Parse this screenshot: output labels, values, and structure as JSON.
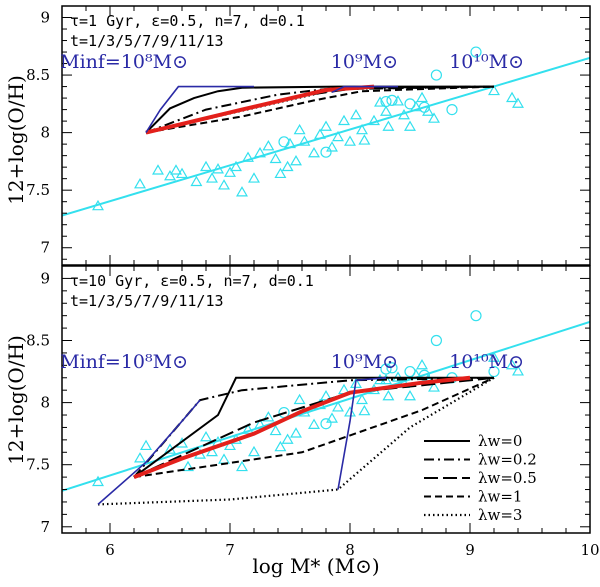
{
  "chart_data": {
    "type": "line",
    "xlabel": "log M* (M⊙)",
    "ylabel": "12+log(O/H)",
    "xlim": [
      5.6,
      10
    ],
    "x_ticks": [
      6,
      7,
      8,
      9,
      10
    ],
    "shared_x": true,
    "colors": {
      "model": "#000000",
      "fit": "#33e0ee",
      "obs": "#33e0ee",
      "highlight": "#e3201b",
      "envelope": "#2a2aa6"
    },
    "legend": {
      "position": "bottom-right",
      "entries": [
        {
          "label": "λw=0",
          "style": "solid"
        },
        {
          "label": "λw=0.2",
          "style": "dashdot"
        },
        {
          "label": "λw=0.5",
          "style": "longdash"
        },
        {
          "label": "λw=1",
          "style": "dash"
        },
        {
          "label": "λw=3",
          "style": "dot"
        }
      ]
    },
    "panels": [
      {
        "ylim": [
          6.85,
          9.1
        ],
        "y_ticks": [
          7,
          7.5,
          8,
          8.5,
          9
        ],
        "params_line1": "τ=1 Gyr, ε=0.5, n=7, d=0.1",
        "params_line2": "t=1/3/5/7/9/11/13",
        "mass_labels": [
          {
            "text": "Minf=10⁸M⊙",
            "x": 6.65,
            "y": 8.56
          },
          {
            "text": "10⁹M⊙",
            "x": 8.4,
            "y": 8.56
          },
          {
            "text": "10¹⁰M⊙",
            "x": 9.45,
            "y": 8.56
          }
        ],
        "fit_line": [
          [
            5.6,
            7.28
          ],
          [
            10,
            8.65
          ]
        ],
        "series": [
          {
            "name": "λw=0",
            "style": "solid",
            "points": [
              [
                6.3,
                8.0
              ],
              [
                6.5,
                8.21
              ],
              [
                6.7,
                8.3
              ],
              [
                6.9,
                8.36
              ],
              [
                7.1,
                8.39
              ],
              [
                7.9,
                8.4
              ],
              [
                9.2,
                8.4
              ]
            ]
          },
          {
            "name": "λw=0.2",
            "style": "dashdot",
            "points": [
              [
                6.3,
                8.0
              ],
              [
                6.8,
                8.2
              ],
              [
                7.4,
                8.33
              ],
              [
                7.9,
                8.39
              ],
              [
                9.2,
                8.4
              ]
            ]
          },
          {
            "name": "λw=0.5",
            "style": "longdash",
            "points": [
              [
                6.3,
                8.0
              ],
              [
                7.0,
                8.18
              ],
              [
                7.6,
                8.32
              ],
              [
                8.0,
                8.38
              ],
              [
                9.2,
                8.4
              ]
            ]
          },
          {
            "name": "λw=1",
            "style": "dash",
            "points": [
              [
                6.3,
                8.0
              ],
              [
                7.1,
                8.14
              ],
              [
                7.7,
                8.28
              ],
              [
                8.1,
                8.36
              ],
              [
                9.2,
                8.4
              ]
            ]
          },
          {
            "name": "λw=3",
            "style": "dot",
            "points": [
              [
                6.3,
                8.0
              ],
              [
                7.9,
                8.38
              ],
              [
                9.2,
                8.4
              ]
            ]
          },
          {
            "name": "highlight",
            "style": "red",
            "points": [
              [
                6.3,
                8.0
              ],
              [
                7.1,
                8.2
              ],
              [
                7.8,
                8.37
              ],
              [
                8.2,
                8.4
              ]
            ]
          },
          {
            "name": "envelope",
            "style": "blue",
            "points": [
              [
                6.3,
                8.0
              ],
              [
                6.42,
                8.2
              ],
              [
                6.57,
                8.4
              ],
              [
                7.2,
                8.4
              ]
            ]
          },
          {
            "name": "envelope-2",
            "style": "blue",
            "points": [
              [
                7.85,
                8.35
              ],
              [
                7.95,
                8.4
              ],
              [
                8.4,
                8.4
              ]
            ]
          }
        ],
        "triangles": [
          [
            5.9,
            7.36
          ],
          [
            6.25,
            7.55
          ],
          [
            6.4,
            7.67
          ],
          [
            6.5,
            7.62
          ],
          [
            6.55,
            7.67
          ],
          [
            6.6,
            7.64
          ],
          [
            6.72,
            7.57
          ],
          [
            6.8,
            7.7
          ],
          [
            6.85,
            7.6
          ],
          [
            6.9,
            7.68
          ],
          [
            6.95,
            7.54
          ],
          [
            7.0,
            7.65
          ],
          [
            7.05,
            7.7
          ],
          [
            7.1,
            7.48
          ],
          [
            7.15,
            7.78
          ],
          [
            7.2,
            7.6
          ],
          [
            7.25,
            7.82
          ],
          [
            7.32,
            7.88
          ],
          [
            7.38,
            7.77
          ],
          [
            7.42,
            7.64
          ],
          [
            7.48,
            7.7
          ],
          [
            7.5,
            7.9
          ],
          [
            7.55,
            7.75
          ],
          [
            7.58,
            8.02
          ],
          [
            7.62,
            7.92
          ],
          [
            7.7,
            7.82
          ],
          [
            7.75,
            7.98
          ],
          [
            7.8,
            8.05
          ],
          [
            7.85,
            7.87
          ],
          [
            7.9,
            7.96
          ],
          [
            7.95,
            8.1
          ],
          [
            8.0,
            7.92
          ],
          [
            8.05,
            8.15
          ],
          [
            8.1,
            8.02
          ],
          [
            8.12,
            7.93
          ],
          [
            8.2,
            8.1
          ],
          [
            8.25,
            8.26
          ],
          [
            8.3,
            8.18
          ],
          [
            8.32,
            8.05
          ],
          [
            8.4,
            8.27
          ],
          [
            8.45,
            8.15
          ],
          [
            8.5,
            8.05
          ],
          [
            8.55,
            8.22
          ],
          [
            8.6,
            8.3
          ],
          [
            8.65,
            8.18
          ],
          [
            8.7,
            8.12
          ],
          [
            9.2,
            8.36
          ],
          [
            9.35,
            8.3
          ],
          [
            9.4,
            8.25
          ]
        ],
        "circles": [
          [
            7.45,
            7.92
          ],
          [
            7.8,
            7.83
          ],
          [
            8.3,
            8.27
          ],
          [
            8.35,
            8.28
          ],
          [
            8.5,
            8.25
          ],
          [
            8.62,
            8.22
          ],
          [
            8.72,
            8.5
          ],
          [
            8.85,
            8.2
          ],
          [
            9.05,
            8.7
          ]
        ]
      },
      {
        "ylim": [
          6.95,
          9.1
        ],
        "y_ticks": [
          7,
          7.5,
          8,
          8.5,
          9
        ],
        "params_line1": "τ=10 Gyr, ε=0.5, n=7, d=0.1",
        "params_line2": "t=1/3/5/7/9/11/13",
        "mass_labels": [
          {
            "text": "Minf=10⁸M⊙",
            "x": 6.65,
            "y": 8.28
          },
          {
            "text": "10⁹M⊙",
            "x": 8.4,
            "y": 8.28
          },
          {
            "text": "10¹⁰M⊙",
            "x": 9.45,
            "y": 8.28
          }
        ],
        "fit_line": [
          [
            5.6,
            7.29
          ],
          [
            10,
            8.65
          ]
        ],
        "series": [
          {
            "name": "λw=0",
            "style": "solid",
            "points": [
              [
                6.2,
                7.4
              ],
              [
                6.9,
                7.9
              ],
              [
                7.05,
                8.2
              ],
              [
                9.2,
                8.2
              ]
            ]
          },
          {
            "name": "λw=0.2",
            "style": "dashdot",
            "points": [
              [
                6.2,
                7.4
              ],
              [
                6.75,
                8.02
              ],
              [
                7.1,
                8.1
              ],
              [
                8.0,
                8.18
              ],
              [
                9.2,
                8.2
              ]
            ]
          },
          {
            "name": "λw=0.5",
            "style": "longdash",
            "points": [
              [
                6.2,
                7.4
              ],
              [
                7.2,
                7.84
              ],
              [
                8.0,
                8.08
              ],
              [
                9.2,
                8.2
              ]
            ]
          },
          {
            "name": "λw=1",
            "style": "dash",
            "points": [
              [
                6.2,
                7.4
              ],
              [
                7.6,
                7.6
              ],
              [
                8.6,
                7.94
              ],
              [
                9.2,
                8.2
              ]
            ]
          },
          {
            "name": "λw=3",
            "style": "dot",
            "points": [
              [
                5.9,
                7.18
              ],
              [
                7.0,
                7.22
              ],
              [
                7.9,
                7.3
              ],
              [
                8.5,
                7.8
              ],
              [
                9.2,
                8.2
              ]
            ]
          },
          {
            "name": "highlight",
            "style": "red",
            "points": [
              [
                6.2,
                7.4
              ],
              [
                6.6,
                7.55
              ],
              [
                7.2,
                7.75
              ],
              [
                7.6,
                7.93
              ],
              [
                8.0,
                8.08
              ],
              [
                8.6,
                8.16
              ],
              [
                9.0,
                8.2
              ]
            ]
          },
          {
            "name": "envelope",
            "style": "blue",
            "points": [
              [
                5.9,
                7.18
              ],
              [
                6.3,
                7.52
              ],
              [
                6.6,
                7.85
              ],
              [
                6.75,
                8.02
              ]
            ]
          },
          {
            "name": "envelope-2",
            "style": "blue",
            "points": [
              [
                7.9,
                7.3
              ],
              [
                8.0,
                7.85
              ],
              [
                8.05,
                8.18
              ],
              [
                8.3,
                8.2
              ]
            ]
          }
        ],
        "triangles": [
          [
            5.9,
            7.36
          ],
          [
            6.25,
            7.55
          ],
          [
            6.3,
            7.65
          ],
          [
            6.5,
            7.62
          ],
          [
            6.6,
            7.67
          ],
          [
            6.65,
            7.48
          ],
          [
            6.75,
            7.58
          ],
          [
            6.8,
            7.72
          ],
          [
            6.85,
            7.6
          ],
          [
            6.9,
            7.68
          ],
          [
            6.95,
            7.54
          ],
          [
            7.0,
            7.65
          ],
          [
            7.05,
            7.7
          ],
          [
            7.1,
            7.48
          ],
          [
            7.15,
            7.78
          ],
          [
            7.2,
            7.6
          ],
          [
            7.25,
            7.82
          ],
          [
            7.32,
            7.88
          ],
          [
            7.38,
            7.77
          ],
          [
            7.42,
            7.64
          ],
          [
            7.48,
            7.7
          ],
          [
            7.55,
            7.75
          ],
          [
            7.58,
            8.02
          ],
          [
            7.62,
            7.92
          ],
          [
            7.7,
            7.82
          ],
          [
            7.75,
            7.98
          ],
          [
            7.8,
            8.05
          ],
          [
            7.85,
            7.87
          ],
          [
            7.9,
            7.96
          ],
          [
            7.95,
            8.1
          ],
          [
            8.0,
            7.92
          ],
          [
            8.05,
            8.15
          ],
          [
            8.1,
            8.02
          ],
          [
            8.12,
            7.93
          ],
          [
            8.2,
            8.1
          ],
          [
            8.25,
            8.18
          ],
          [
            8.3,
            8.18
          ],
          [
            8.32,
            8.05
          ],
          [
            8.4,
            8.2
          ],
          [
            8.45,
            8.15
          ],
          [
            8.5,
            8.05
          ],
          [
            8.55,
            8.22
          ],
          [
            8.6,
            8.3
          ],
          [
            8.65,
            8.18
          ],
          [
            8.7,
            8.12
          ],
          [
            9.2,
            8.36
          ],
          [
            9.35,
            8.3
          ],
          [
            9.4,
            8.25
          ]
        ],
        "circles": [
          [
            7.45,
            7.92
          ],
          [
            7.8,
            7.83
          ],
          [
            8.3,
            8.27
          ],
          [
            8.35,
            8.28
          ],
          [
            8.5,
            8.25
          ],
          [
            8.62,
            8.22
          ],
          [
            8.72,
            8.5
          ],
          [
            8.85,
            8.2
          ],
          [
            9.05,
            8.7
          ],
          [
            9.2,
            8.25
          ]
        ]
      }
    ]
  }
}
